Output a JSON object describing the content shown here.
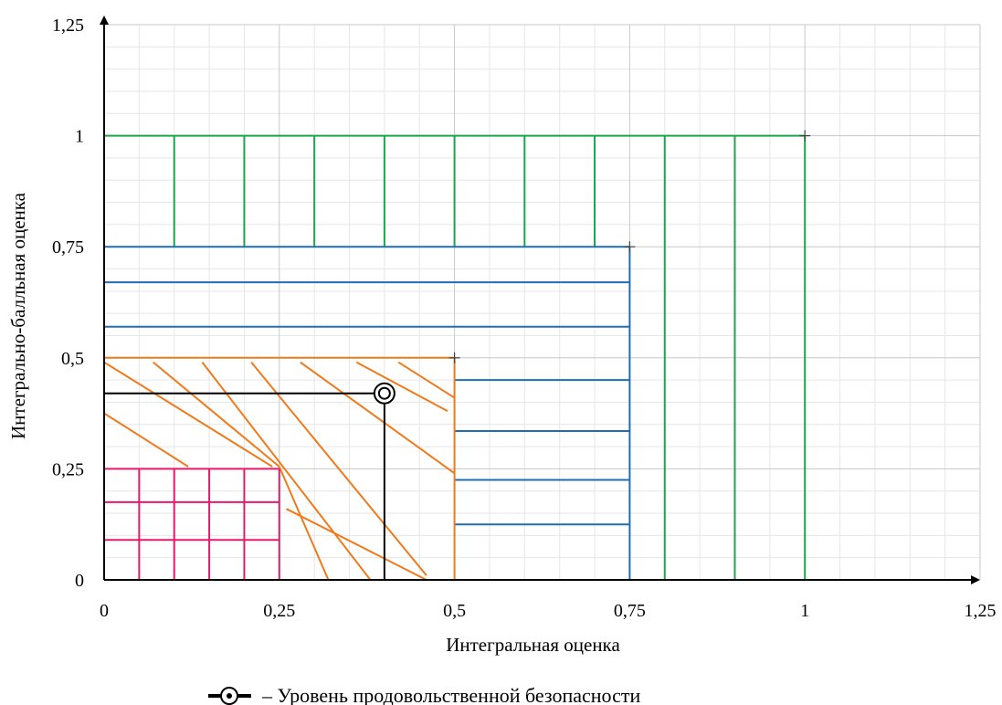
{
  "chart_data": {
    "type": "area",
    "xlabel": "Интегральная оценка",
    "ylabel": "Интегрально-балльная оценка",
    "xlim": [
      0,
      1.25
    ],
    "ylim": [
      0,
      1.25
    ],
    "x_ticks": [
      "0",
      "0,25",
      "0,5",
      "0,75",
      "1",
      "1,25"
    ],
    "y_ticks": [
      "0",
      "0,25",
      "0,5",
      "0,75",
      "1",
      "1,25"
    ],
    "grid": true,
    "zones": [
      {
        "x_max": 1.0,
        "y_max": 1.0,
        "color": "#1aa64a",
        "pattern": "vertical"
      },
      {
        "x_max": 0.75,
        "y_max": 0.75,
        "color": "#1f6eb4",
        "pattern": "horizontal"
      },
      {
        "x_max": 0.5,
        "y_max": 0.5,
        "color": "#f07a1a",
        "pattern": "diagonal"
      },
      {
        "x_max": 0.25,
        "y_max": 0.25,
        "color": "#e8196b",
        "pattern": "grid"
      }
    ],
    "point": {
      "x": 0.4,
      "y": 0.42,
      "color": "#000000"
    },
    "legend": {
      "text": "– Уровень продовольственной безопасности",
      "placement": "bottom"
    }
  }
}
